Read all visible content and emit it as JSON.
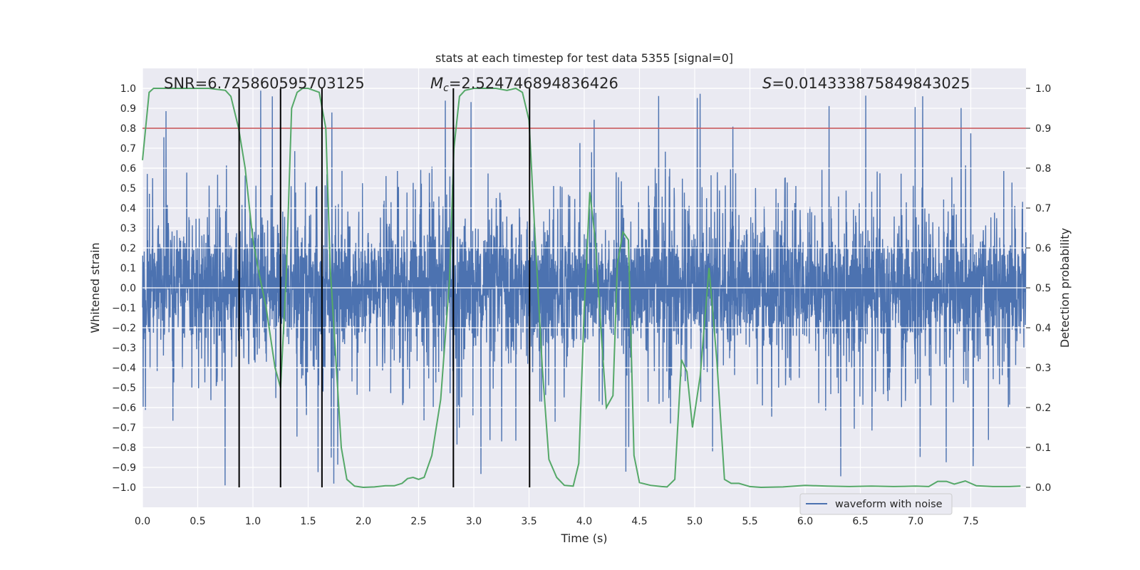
{
  "chart_data": {
    "type": "line",
    "title": "stats at each timestep for test data 5355 [signal=0]",
    "xlabel": "Time (s)",
    "ylabel": "Whitened strain",
    "y2label": "Detection probability",
    "xlim": [
      0,
      8.0
    ],
    "ylim": [
      -1.1,
      1.1
    ],
    "y2lim": [
      -0.05,
      1.05
    ],
    "xticks": [
      0.0,
      0.5,
      1.0,
      1.5,
      2.0,
      2.5,
      3.0,
      3.5,
      4.0,
      4.5,
      5.0,
      5.5,
      6.0,
      6.5,
      7.0,
      7.5
    ],
    "yticks": [
      -1.0,
      -0.9,
      -0.8,
      -0.7,
      -0.6,
      -0.5,
      -0.4,
      -0.3,
      -0.2,
      -0.1,
      0.0,
      0.1,
      0.2,
      0.3,
      0.4,
      0.5,
      0.6,
      0.7,
      0.8,
      0.9,
      1.0
    ],
    "y2ticks": [
      0.0,
      0.1,
      0.2,
      0.3,
      0.4,
      0.5,
      0.6,
      0.7,
      0.8,
      0.9,
      1.0
    ],
    "grid": true,
    "legend": {
      "position": "bottom-right",
      "entries": [
        "waveform with noise"
      ]
    },
    "annotations": {
      "snr": "SNR=6.725860595703125",
      "mc_symbol": "M",
      "mc_sub": "c",
      "mc_value": "=2.524746894836426",
      "s_symbol": "S",
      "s_value": "=0.014333875849843025"
    },
    "threshold": {
      "value": 0.9,
      "axis": "y2",
      "color": "#c44e52"
    },
    "vertical_lines": [
      0.875,
      1.25,
      1.625,
      2.815,
      3.505
    ],
    "waveform": {
      "color": "#4c72b0",
      "sample_rate": 512,
      "duration": 8.0,
      "typical_envelope": 0.35,
      "spike_max": 1.0
    },
    "probability_series": {
      "color": "#55a868",
      "points": [
        [
          0.0,
          0.82
        ],
        [
          0.06,
          0.99
        ],
        [
          0.1,
          1.0
        ],
        [
          0.2,
          1.0
        ],
        [
          0.4,
          1.0
        ],
        [
          0.6,
          1.0
        ],
        [
          0.75,
          0.995
        ],
        [
          0.8,
          0.98
        ],
        [
          0.87,
          0.9
        ],
        [
          0.93,
          0.8
        ],
        [
          1.0,
          0.62
        ],
        [
          1.06,
          0.53
        ],
        [
          1.12,
          0.45
        ],
        [
          1.2,
          0.3
        ],
        [
          1.25,
          0.25
        ],
        [
          1.3,
          0.52
        ],
        [
          1.35,
          0.95
        ],
        [
          1.4,
          0.99
        ],
        [
          1.45,
          1.0
        ],
        [
          1.5,
          1.0
        ],
        [
          1.55,
          0.995
        ],
        [
          1.6,
          0.99
        ],
        [
          1.66,
          0.9
        ],
        [
          1.7,
          0.55
        ],
        [
          1.8,
          0.1
        ],
        [
          1.85,
          0.02
        ],
        [
          1.92,
          0.003
        ],
        [
          2.0,
          0.0
        ],
        [
          2.1,
          0.001
        ],
        [
          2.2,
          0.004
        ],
        [
          2.28,
          0.004
        ],
        [
          2.35,
          0.01
        ],
        [
          2.4,
          0.022
        ],
        [
          2.45,
          0.025
        ],
        [
          2.5,
          0.02
        ],
        [
          2.55,
          0.025
        ],
        [
          2.62,
          0.08
        ],
        [
          2.7,
          0.22
        ],
        [
          2.78,
          0.52
        ],
        [
          2.82,
          0.85
        ],
        [
          2.87,
          0.98
        ],
        [
          2.92,
          0.995
        ],
        [
          3.0,
          1.0
        ],
        [
          3.1,
          1.0
        ],
        [
          3.2,
          1.0
        ],
        [
          3.3,
          0.995
        ],
        [
          3.38,
          1.0
        ],
        [
          3.44,
          0.99
        ],
        [
          3.5,
          0.92
        ],
        [
          3.55,
          0.65
        ],
        [
          3.62,
          0.3
        ],
        [
          3.68,
          0.07
        ],
        [
          3.75,
          0.025
        ],
        [
          3.82,
          0.005
        ],
        [
          3.9,
          0.003
        ],
        [
          3.95,
          0.06
        ],
        [
          4.0,
          0.45
        ],
        [
          4.05,
          0.74
        ],
        [
          4.1,
          0.62
        ],
        [
          4.15,
          0.4
        ],
        [
          4.2,
          0.2
        ],
        [
          4.26,
          0.23
        ],
        [
          4.3,
          0.56
        ],
        [
          4.35,
          0.64
        ],
        [
          4.4,
          0.62
        ],
        [
          4.45,
          0.08
        ],
        [
          4.5,
          0.012
        ],
        [
          4.6,
          0.005
        ],
        [
          4.7,
          0.002
        ],
        [
          4.75,
          0.001
        ],
        [
          4.82,
          0.02
        ],
        [
          4.88,
          0.32
        ],
        [
          4.93,
          0.29
        ],
        [
          4.98,
          0.15
        ],
        [
          5.05,
          0.28
        ],
        [
          5.13,
          0.55
        ],
        [
          5.2,
          0.32
        ],
        [
          5.27,
          0.02
        ],
        [
          5.33,
          0.01
        ],
        [
          5.4,
          0.01
        ],
        [
          5.5,
          0.002
        ],
        [
          5.6,
          0.0
        ],
        [
          5.8,
          0.001
        ],
        [
          6.0,
          0.005
        ],
        [
          6.2,
          0.003
        ],
        [
          6.4,
          0.002
        ],
        [
          6.6,
          0.003
        ],
        [
          6.8,
          0.002
        ],
        [
          7.0,
          0.003
        ],
        [
          7.12,
          0.002
        ],
        [
          7.2,
          0.015
        ],
        [
          7.28,
          0.015
        ],
        [
          7.35,
          0.008
        ],
        [
          7.45,
          0.016
        ],
        [
          7.55,
          0.004
        ],
        [
          7.7,
          0.002
        ],
        [
          7.85,
          0.002
        ],
        [
          7.95,
          0.003
        ]
      ]
    }
  }
}
